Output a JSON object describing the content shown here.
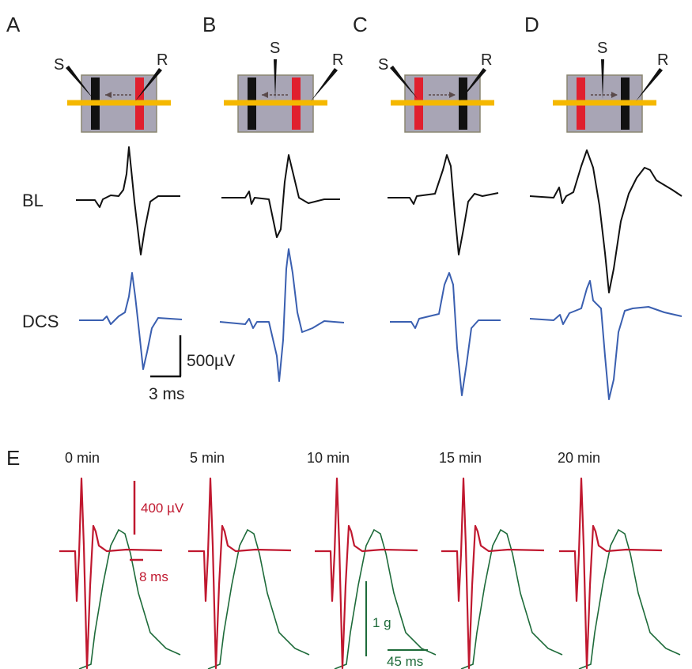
{
  "panels": [
    {
      "letter": "A",
      "stim": "S",
      "rec": "R"
    },
    {
      "letter": "B",
      "stim": "S",
      "rec": "R"
    },
    {
      "letter": "C",
      "stim": "S",
      "rec": "R"
    },
    {
      "letter": "D",
      "stim": "S",
      "rec": "R"
    }
  ],
  "rows": [
    "BL",
    "DCS"
  ],
  "scale_a": {
    "voltage": "500µV",
    "time": "3 ms"
  },
  "panel_e": {
    "letter": "E",
    "times": [
      "0 min",
      "5 min",
      "10 min",
      "15 min",
      "20 min"
    ],
    "scale": {
      "voltage": "400 µV",
      "time_red": "8 ms",
      "force": "1 g",
      "time_green": "45 ms"
    }
  }
}
